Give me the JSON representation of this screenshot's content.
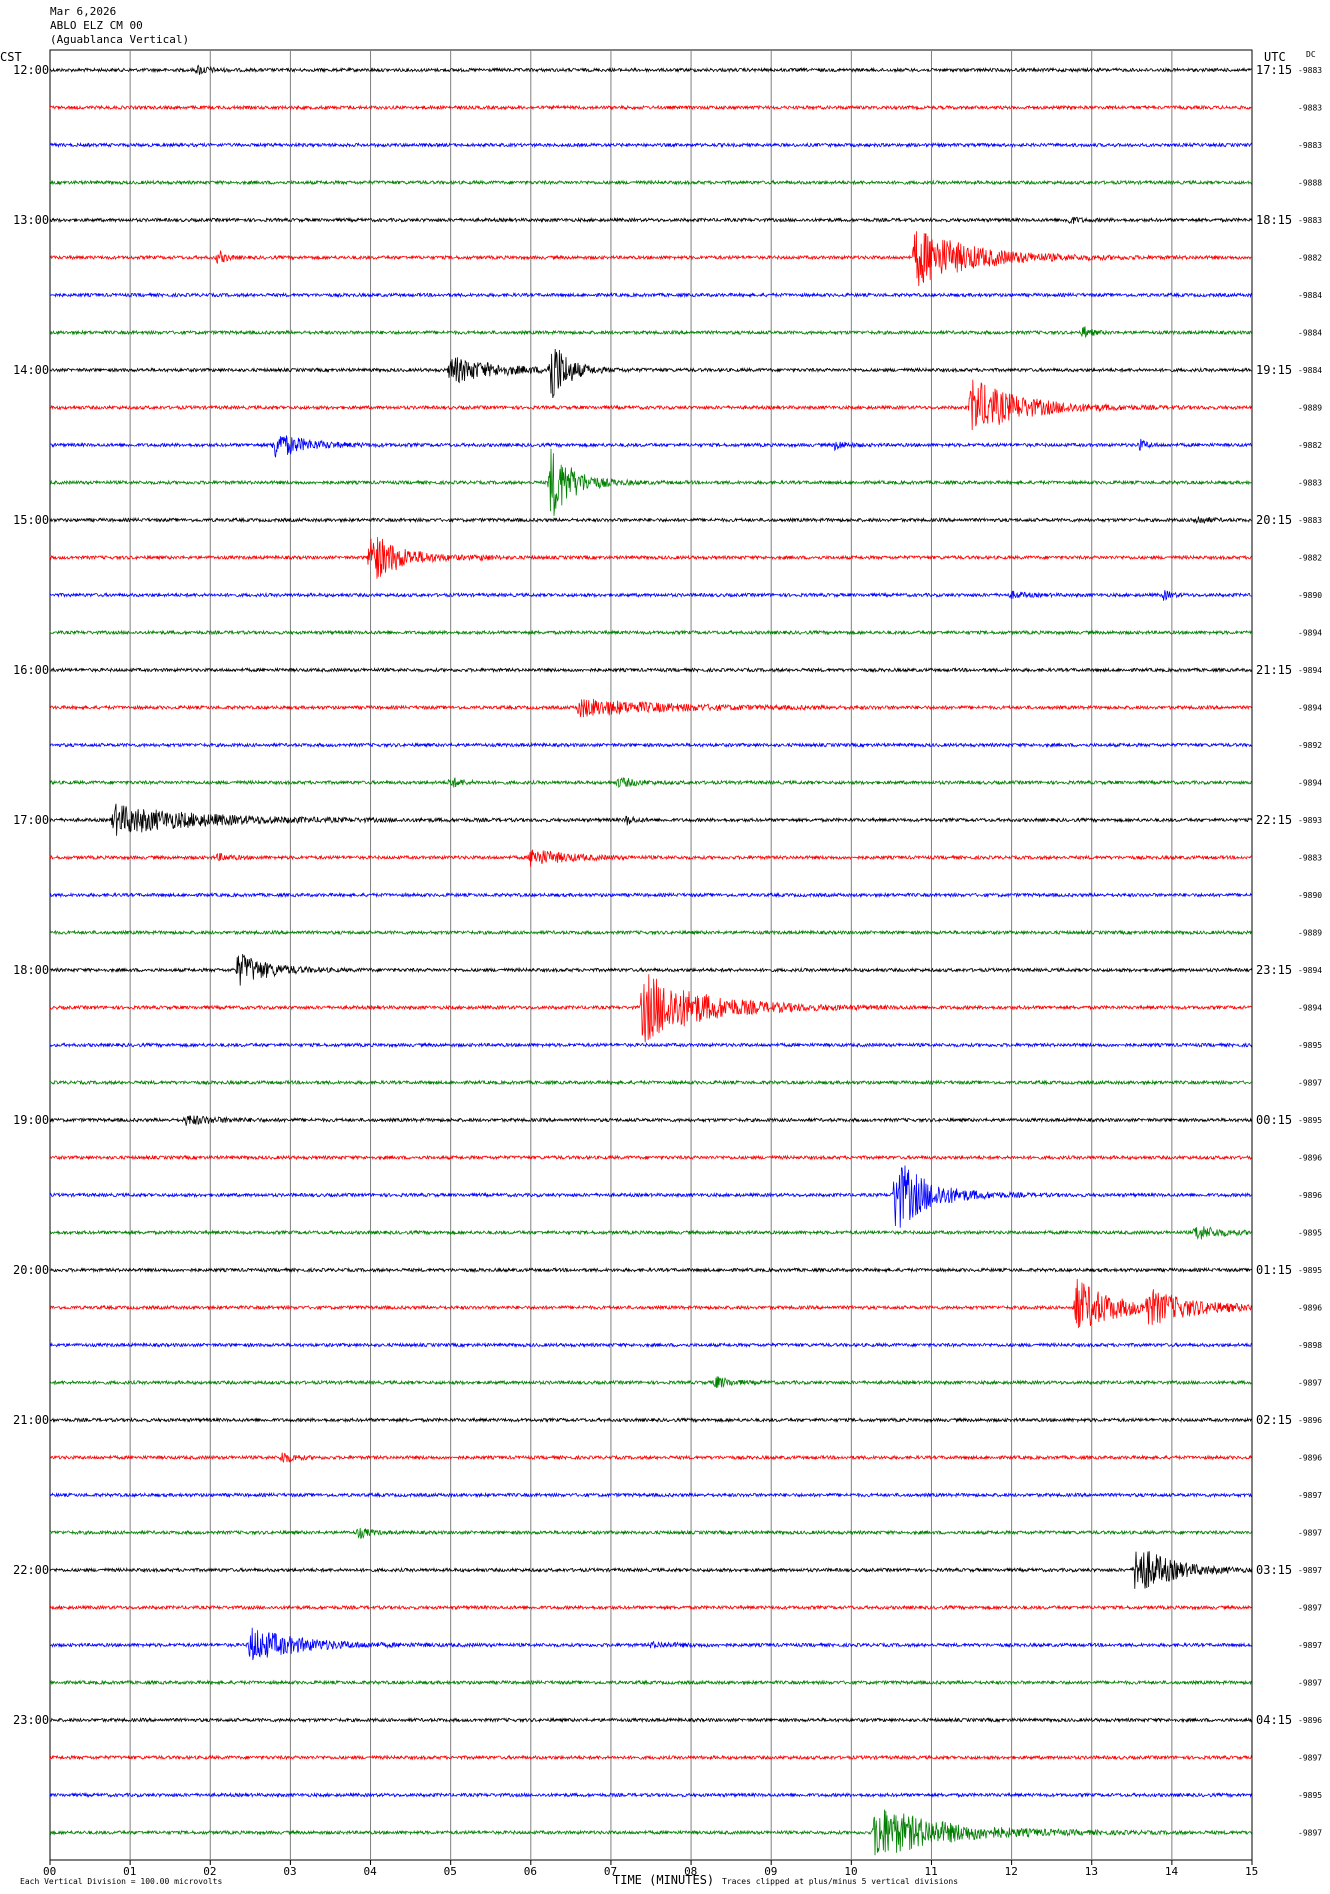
{
  "header": {
    "line1": "Mar 6,2026",
    "line2": "ABLO ELZ CM 00",
    "line3": "(Aguablanca Vertical)"
  },
  "left_axis_label": "CST",
  "right_axis_label": "UTC",
  "dc_label": "DC",
  "footer": {
    "scale_note": "Each Vertical Division =  100.00 microvolts",
    "xlabel": "TIME (MINUTES)",
    "clip_note": "Traces clipped at plus/minus 5 vertical divisions"
  },
  "colors": {
    "cycle": [
      "#000000",
      "#ff0000",
      "#0000ff",
      "#008000"
    ],
    "grid": "#808080"
  },
  "chart_data": {
    "type": "line",
    "subtype": "helicorder",
    "title": "ABLO ELZ CM 00 (Aguablanca Vertical)",
    "date": "Mar 6,2026",
    "xlabel": "TIME (MINUTES)",
    "xlim": [
      0,
      15
    ],
    "x_ticks": [
      "00",
      "01",
      "02",
      "03",
      "04",
      "05",
      "06",
      "07",
      "08",
      "09",
      "10",
      "11",
      "12",
      "13",
      "14",
      "15"
    ],
    "minutes_per_line": 15,
    "num_lines": 48,
    "left_hour_labels": [
      "12:00",
      "13:00",
      "14:00",
      "15:00",
      "16:00",
      "17:00",
      "18:00",
      "19:00",
      "20:00",
      "21:00",
      "22:00",
      "23:00"
    ],
    "right_hour_labels": [
      "17:15",
      "18:15",
      "19:15",
      "20:15",
      "21:15",
      "22:15",
      "23:15",
      "00:15",
      "01:15",
      "02:15",
      "03:15",
      "04:15"
    ],
    "dc_offsets": [
      "-9883",
      "-9883",
      "-9883",
      "-9888",
      "-9883",
      "-9882",
      "-9884",
      "-9884",
      "-9884",
      "-9889",
      "-9882",
      "-9883",
      "-9883",
      "-9882",
      "-9890",
      "-9894",
      "-9894",
      "-9894",
      "-9892",
      "-9894",
      "-9893",
      "-9883",
      "-9890",
      "-9889",
      "-9894",
      "-9894",
      "-9895",
      "-9897",
      "-9895",
      "-9896",
      "-9896",
      "-9895",
      "-9895",
      "-9896",
      "-9898",
      "-9897",
      "-9896",
      "-9896",
      "-9897",
      "-9897",
      "-9897",
      "-9897",
      "-9897",
      "-9897",
      "-9896",
      "-9897",
      "-9895",
      "-9897"
    ],
    "events": [
      {
        "line": 0,
        "minute": 1.85,
        "amp": 0.6,
        "dur": 0.3
      },
      {
        "line": 4,
        "minute": 12.7,
        "amp": 0.5,
        "dur": 0.3
      },
      {
        "line": 5,
        "minute": 2.1,
        "amp": 0.9,
        "dur": 0.2
      },
      {
        "line": 5,
        "minute": 10.8,
        "amp": 4.0,
        "dur": 1.5
      },
      {
        "line": 7,
        "minute": 12.9,
        "amp": 0.8,
        "dur": 0.2
      },
      {
        "line": 8,
        "minute": 5.0,
        "amp": 1.8,
        "dur": 1.2
      },
      {
        "line": 8,
        "minute": 6.25,
        "amp": 5.0,
        "dur": 0.4
      },
      {
        "line": 9,
        "minute": 11.5,
        "amp": 3.8,
        "dur": 1.3
      },
      {
        "line": 10,
        "minute": 2.8,
        "amp": 1.8,
        "dur": 0.8
      },
      {
        "line": 10,
        "minute": 9.8,
        "amp": 0.6,
        "dur": 0.3
      },
      {
        "line": 10,
        "minute": 13.6,
        "amp": 0.7,
        "dur": 0.2
      },
      {
        "line": 11,
        "minute": 6.25,
        "amp": 5.0,
        "dur": 0.6
      },
      {
        "line": 12,
        "minute": 14.3,
        "amp": 0.6,
        "dur": 0.3
      },
      {
        "line": 13,
        "minute": 4.0,
        "amp": 3.6,
        "dur": 0.8
      },
      {
        "line": 13,
        "minute": 5.4,
        "amp": 0.3,
        "dur": 0.2
      },
      {
        "line": 14,
        "minute": 12.0,
        "amp": 0.4,
        "dur": 0.4
      },
      {
        "line": 14,
        "minute": 13.9,
        "amp": 0.6,
        "dur": 0.2
      },
      {
        "line": 17,
        "minute": 6.6,
        "amp": 1.2,
        "dur": 2.2
      },
      {
        "line": 19,
        "minute": 5.0,
        "amp": 0.7,
        "dur": 0.3
      },
      {
        "line": 19,
        "minute": 7.1,
        "amp": 0.6,
        "dur": 0.5
      },
      {
        "line": 20,
        "minute": 0.8,
        "amp": 2.0,
        "dur": 2.3
      },
      {
        "line": 20,
        "minute": 7.2,
        "amp": 0.6,
        "dur": 0.2
      },
      {
        "line": 21,
        "minute": 6.0,
        "amp": 1.2,
        "dur": 0.9
      },
      {
        "line": 21,
        "minute": 2.1,
        "amp": 0.4,
        "dur": 0.4
      },
      {
        "line": 24,
        "minute": 2.35,
        "amp": 2.3,
        "dur": 0.8
      },
      {
        "line": 25,
        "minute": 7.4,
        "amp": 4.8,
        "dur": 1.6
      },
      {
        "line": 28,
        "minute": 1.7,
        "amp": 0.6,
        "dur": 0.9
      },
      {
        "line": 30,
        "minute": 10.55,
        "amp": 5.0,
        "dur": 0.9
      },
      {
        "line": 31,
        "minute": 14.3,
        "amp": 1.0,
        "dur": 0.6
      },
      {
        "line": 33,
        "minute": 12.8,
        "amp": 3.8,
        "dur": 1.0
      },
      {
        "line": 33,
        "minute": 13.7,
        "amp": 2.0,
        "dur": 1.3
      },
      {
        "line": 35,
        "minute": 8.3,
        "amp": 0.8,
        "dur": 0.4
      },
      {
        "line": 37,
        "minute": 2.9,
        "amp": 0.8,
        "dur": 0.3
      },
      {
        "line": 39,
        "minute": 3.85,
        "amp": 0.7,
        "dur": 0.3
      },
      {
        "line": 40,
        "minute": 13.55,
        "amp": 3.6,
        "dur": 0.9
      },
      {
        "line": 42,
        "minute": 2.5,
        "amp": 2.3,
        "dur": 1.3
      },
      {
        "line": 42,
        "minute": 7.5,
        "amp": 0.3,
        "dur": 0.8
      },
      {
        "line": 47,
        "minute": 10.3,
        "amp": 3.6,
        "dur": 1.8
      }
    ]
  }
}
